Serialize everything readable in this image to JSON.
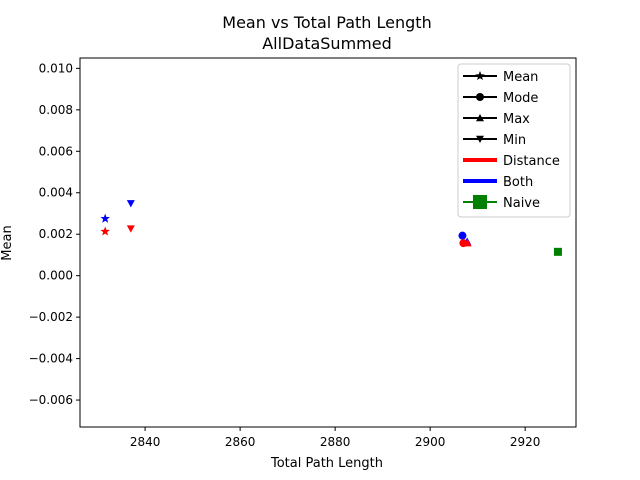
{
  "chart_data": {
    "type": "scatter",
    "title": "Mean vs Total Path Length",
    "subtitle": "AllDataSummed",
    "xlabel": "Total Path Length",
    "ylabel": "Mean",
    "xlim": [
      2826.3,
      2930.7
    ],
    "ylim": [
      -0.0073,
      0.0105
    ],
    "xticks": [
      2840,
      2860,
      2880,
      2900,
      2920
    ],
    "xtick_labels": [
      "2840",
      "2860",
      "2880",
      "2900",
      "2920"
    ],
    "yticks": [
      -0.006,
      -0.004,
      -0.002,
      0.0,
      0.002,
      0.004,
      0.006,
      0.008,
      0.01
    ],
    "ytick_labels": [
      "−0.006",
      "−0.004",
      "−0.002",
      "0.000",
      "0.002",
      "0.004",
      "0.006",
      "0.008",
      "0.010"
    ],
    "grid": false,
    "legend_position": "top-right",
    "legend": [
      {
        "label": "Mean",
        "color": "#000000",
        "marker": "star",
        "kind": "line"
      },
      {
        "label": "Mode",
        "color": "#000000",
        "marker": "circle",
        "kind": "line"
      },
      {
        "label": "Max",
        "color": "#000000",
        "marker": "triangle-up",
        "kind": "line"
      },
      {
        "label": "Min",
        "color": "#000000",
        "marker": "triangle-down",
        "kind": "line"
      },
      {
        "label": "Distance",
        "color": "#ff0000",
        "marker": "none",
        "kind": "thick-line"
      },
      {
        "label": "Both",
        "color": "#0000ff",
        "marker": "none",
        "kind": "thick-line"
      },
      {
        "label": "Naive",
        "color": "#008000",
        "marker": "square",
        "kind": "square"
      }
    ],
    "points": [
      {
        "group": "Both",
        "stat": "Mean",
        "x": 2831.6,
        "y": 0.00275,
        "color": "#0000ff",
        "marker": "star"
      },
      {
        "group": "Distance",
        "stat": "Mean",
        "x": 2831.6,
        "y": 0.00213,
        "color": "#ff0000",
        "marker": "star"
      },
      {
        "group": "Both",
        "stat": "Min",
        "x": 2837.0,
        "y": 0.00349,
        "color": "#0000ff",
        "marker": "triangle-down"
      },
      {
        "group": "Distance",
        "stat": "Min",
        "x": 2837.0,
        "y": 0.00227,
        "color": "#ff0000",
        "marker": "triangle-down"
      },
      {
        "group": "Both",
        "stat": "Mode",
        "x": 2906.8,
        "y": 0.00193,
        "color": "#0000ff",
        "marker": "circle"
      },
      {
        "group": "Both",
        "stat": "Max",
        "x": 2907.8,
        "y": 0.00165,
        "color": "#0000ff",
        "marker": "triangle-up"
      },
      {
        "group": "Distance",
        "stat": "Mode",
        "x": 2907.0,
        "y": 0.00157,
        "color": "#ff0000",
        "marker": "circle"
      },
      {
        "group": "Distance",
        "stat": "Max",
        "x": 2907.9,
        "y": 0.00157,
        "color": "#ff0000",
        "marker": "triangle-up"
      },
      {
        "group": "Naive",
        "stat": "Mean",
        "x": 2926.9,
        "y": 0.00115,
        "color": "#008000",
        "marker": "square"
      }
    ]
  }
}
